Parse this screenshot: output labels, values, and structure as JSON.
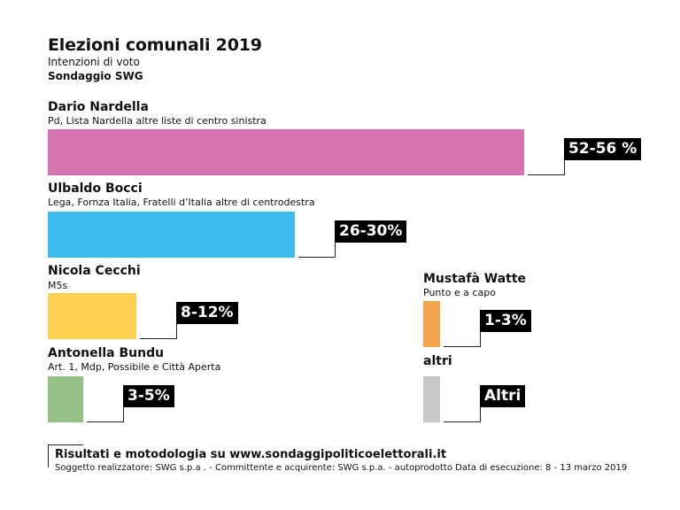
{
  "header": {
    "title": "Elezioni comunali 2019",
    "subtitle": "Intenzioni di voto",
    "source": "Sondaggio SWG"
  },
  "colors": {
    "nardella": "#d473ad",
    "bocci": "#3dbbed",
    "cecchi": "#ffd04f",
    "bundu": "#96c186",
    "watte": "#f2a54b",
    "altri": "#c8c8c8"
  },
  "chart_data": {
    "type": "bar",
    "title": "Elezioni comunali 2019",
    "subtitle": "Intenzioni di voto",
    "unit": "%",
    "scale_max": 56,
    "series": [
      {
        "name": "Dario Nardella",
        "parties": "Pd, Lista Nardella altre liste di centro sinistra",
        "range": [
          52,
          56
        ],
        "label": "52-56 %"
      },
      {
        "name": "Ulbaldo Bocci",
        "parties": "Lega, Fornza Italia, Fratelli d’Italia altre di centrodestra",
        "range": [
          26,
          30
        ],
        "label": "26-30%"
      },
      {
        "name": "Nicola Cecchi",
        "parties": "M5s",
        "range": [
          8,
          12
        ],
        "label": "8-12%"
      },
      {
        "name": "Antonella Bundu",
        "parties": "Art. 1, Mdp, Possibile e Città Aperta",
        "range": [
          3,
          5
        ],
        "label": "3-5%"
      },
      {
        "name": "Mustafà Watte",
        "parties": "Punto e a capo",
        "range": [
          1,
          3
        ],
        "label": "1-3%"
      },
      {
        "name": "altri",
        "parties": "",
        "range": [
          1,
          3
        ],
        "label": "Altri"
      }
    ]
  },
  "footer": {
    "main": "Risultati e motodologia su www.sondaggipoliticoelettorali.it",
    "sub": "Soggetto realizzatore: SWG s.p.a . - Committente e acquirente: SWG s.p.a. - autoprodotto Data di esecuzione: 8 - 13 marzo 2019"
  }
}
